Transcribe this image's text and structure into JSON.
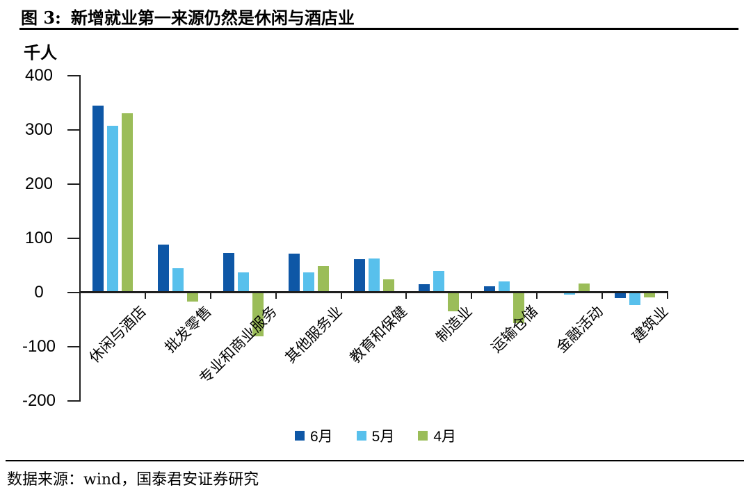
{
  "header": {
    "figure_label": "图 3:",
    "title": "新增就业第一来源仍然是休闲与酒店业"
  },
  "chart_data": {
    "type": "bar",
    "title": "新增就业第一来源仍然是休闲与酒店业",
    "ylabel": "千人",
    "xlabel": "",
    "ylim": [
      -200,
      400
    ],
    "yticks": [
      400,
      300,
      200,
      100,
      0,
      -100,
      -200
    ],
    "grid": false,
    "legend_position": "bottom",
    "categories": [
      "休闲与酒店",
      "批发零售",
      "专业和商业服务",
      "其他服务业",
      "教育和保健",
      "制造业",
      "运输仓储",
      "金融活动",
      "建筑业"
    ],
    "series": [
      {
        "name": "6月",
        "color": "#0E57A6",
        "values": [
          343,
          87,
          72,
          70,
          60,
          14,
          10,
          0,
          -9
        ]
      },
      {
        "name": "5月",
        "color": "#58C0EC",
        "values": [
          306,
          44,
          36,
          36,
          61,
          38,
          19,
          -3,
          -22
        ]
      },
      {
        "name": "4月",
        "color": "#9BBD59",
        "values": [
          329,
          -15,
          -80,
          48,
          23,
          -33,
          -55,
          15,
          -8
        ]
      }
    ]
  },
  "footer": {
    "source": "数据来源：wind，国泰君安证券研究"
  }
}
